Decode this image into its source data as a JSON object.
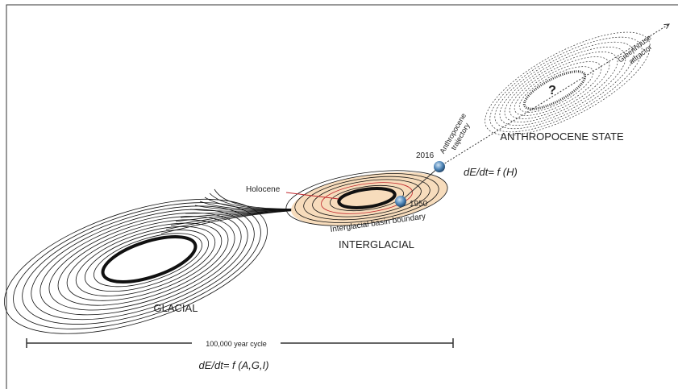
{
  "labels": {
    "anthropocene_state": "ANTHROPOCENE STATE",
    "question": "?",
    "greenhouse_attractor": [
      "Greenhouse",
      "attractor"
    ],
    "anthropocene_trajectory": [
      "Anthropocene",
      "trajectory"
    ],
    "year_2016": "2016",
    "year_1950": "1950",
    "equation_h": "dE/dt= f (H)",
    "holocene": "Holocene",
    "basin_boundary": "Interglacial basin boundary",
    "interglacial": "INTERGLACIAL",
    "glacial": "GLACIAL",
    "cycle": "100,000 year cycle",
    "equation_agi": "dE/dt= f (A,G,I)"
  }
}
